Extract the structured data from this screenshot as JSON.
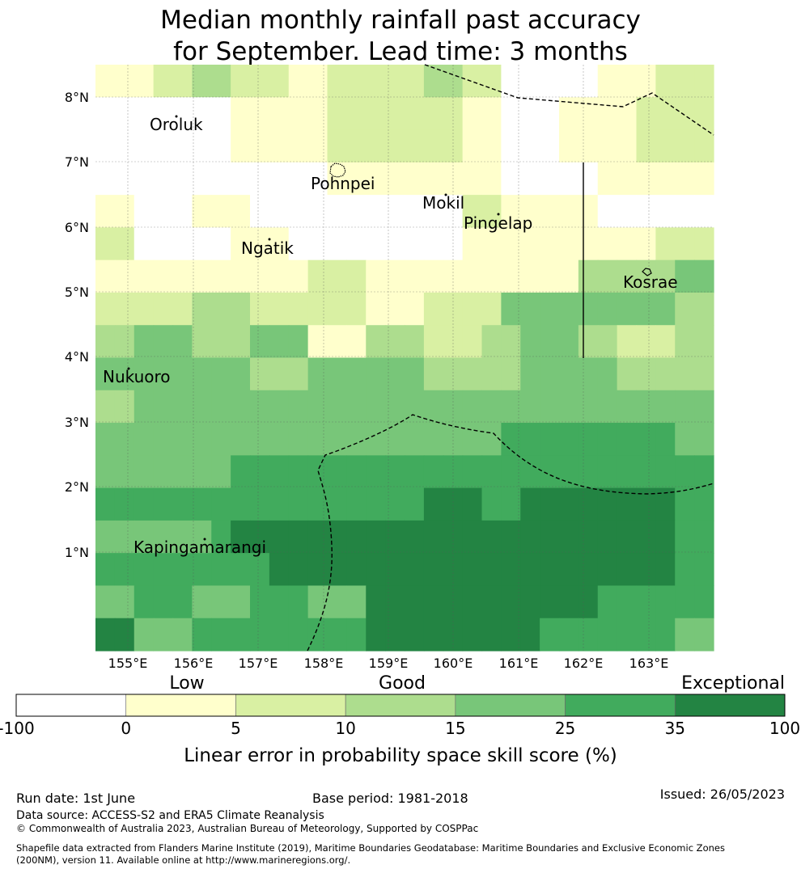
{
  "title": {
    "line1": "Median monthly rainfall past accuracy",
    "line2": "for September. Lead time: 3 months"
  },
  "map": {
    "lon_ticks": [
      "155°E",
      "156°E",
      "157°E",
      "158°E",
      "159°E",
      "160°E",
      "161°E",
      "162°E",
      "163°E"
    ],
    "lat_ticks": [
      "8°N",
      "7°N",
      "6°N",
      "5°N",
      "4°N",
      "3°N",
      "2°N",
      "1°N"
    ],
    "places": [
      {
        "name": "Oroluk"
      },
      {
        "name": "Pohnpei"
      },
      {
        "name": "Mokil"
      },
      {
        "name": "Pingelap"
      },
      {
        "name": "Ngatik"
      },
      {
        "name": "Kosrae"
      },
      {
        "name": "Nukuoro"
      },
      {
        "name": "Kapingamarangi"
      }
    ],
    "grid_classes": [
      [
        1,
        1,
        1,
        2,
        2,
        3,
        3,
        2,
        2,
        2,
        1,
        1,
        2,
        2,
        2,
        2,
        2,
        3,
        3,
        2,
        2,
        0,
        0,
        0,
        0,
        0,
        1,
        1,
        1,
        2,
        2,
        2
      ],
      [
        0,
        0,
        0,
        0,
        0,
        0,
        0,
        1,
        1,
        1,
        1,
        1,
        2,
        2,
        2,
        2,
        2,
        2,
        2,
        1,
        1,
        0,
        0,
        0,
        1,
        1,
        1,
        1,
        2,
        2,
        2,
        2
      ],
      [
        0,
        0,
        0,
        0,
        0,
        0,
        0,
        1,
        1,
        1,
        1,
        1,
        2,
        2,
        2,
        2,
        2,
        2,
        2,
        1,
        1,
        0,
        0,
        0,
        1,
        1,
        1,
        1,
        2,
        2,
        2,
        2
      ],
      [
        0,
        0,
        0,
        0,
        0,
        0,
        0,
        0,
        0,
        0,
        0,
        0,
        1,
        1,
        1,
        1,
        1,
        1,
        1,
        1,
        1,
        0,
        0,
        0,
        0,
        0,
        1,
        1,
        1,
        1,
        1,
        1
      ],
      [
        1,
        1,
        0,
        0,
        0,
        1,
        1,
        1,
        0,
        0,
        0,
        0,
        0,
        0,
        0,
        0,
        0,
        0,
        0,
        2,
        2,
        1,
        1,
        1,
        1,
        1,
        0,
        0,
        0,
        0,
        0,
        0
      ],
      [
        2,
        2,
        0,
        0,
        0,
        0,
        0,
        1,
        1,
        1,
        0,
        0,
        0,
        0,
        0,
        0,
        0,
        0,
        0,
        1,
        1,
        1,
        1,
        1,
        1,
        1,
        1,
        1,
        1,
        2,
        2,
        2
      ],
      [
        1,
        1,
        1,
        1,
        1,
        1,
        1,
        1,
        1,
        1,
        1,
        2,
        2,
        2,
        1,
        1,
        1,
        1,
        1,
        1,
        1,
        1,
        1,
        1,
        1,
        3,
        3,
        3,
        3,
        3,
        4,
        4
      ],
      [
        2,
        2,
        2,
        2,
        2,
        3,
        3,
        3,
        2,
        2,
        2,
        2,
        2,
        2,
        1,
        1,
        1,
        2,
        2,
        2,
        2,
        4,
        4,
        4,
        4,
        4,
        4,
        4,
        4,
        4,
        3,
        3
      ],
      [
        3,
        3,
        4,
        4,
        4,
        3,
        3,
        3,
        4,
        4,
        4,
        1,
        1,
        1,
        3,
        3,
        3,
        2,
        2,
        2,
        3,
        3,
        4,
        4,
        4,
        3,
        3,
        2,
        2,
        2,
        3,
        3
      ],
      [
        4,
        4,
        4,
        4,
        4,
        4,
        4,
        4,
        3,
        3,
        3,
        4,
        4,
        4,
        4,
        4,
        4,
        3,
        3,
        3,
        3,
        3,
        4,
        4,
        4,
        4,
        4,
        3,
        3,
        3,
        3,
        3
      ],
      [
        3,
        3,
        4,
        4,
        4,
        4,
        4,
        4,
        4,
        4,
        4,
        4,
        4,
        4,
        4,
        4,
        4,
        4,
        4,
        4,
        4,
        4,
        4,
        4,
        4,
        4,
        4,
        4,
        4,
        4,
        4,
        4
      ],
      [
        4,
        4,
        4,
        4,
        4,
        4,
        4,
        4,
        4,
        4,
        4,
        4,
        4,
        4,
        4,
        4,
        4,
        4,
        4,
        4,
        4,
        5,
        5,
        5,
        5,
        5,
        5,
        5,
        5,
        5,
        4,
        4
      ],
      [
        4,
        4,
        4,
        4,
        4,
        4,
        4,
        5,
        5,
        5,
        5,
        5,
        5,
        5,
        5,
        5,
        5,
        5,
        5,
        5,
        5,
        5,
        5,
        5,
        5,
        5,
        5,
        5,
        5,
        5,
        5,
        5
      ],
      [
        5,
        5,
        5,
        5,
        5,
        5,
        5,
        5,
        5,
        5,
        5,
        5,
        5,
        5,
        5,
        5,
        5,
        6,
        6,
        6,
        5,
        5,
        6,
        6,
        6,
        6,
        6,
        6,
        6,
        6,
        5,
        5
      ],
      [
        4,
        4,
        4,
        4,
        4,
        4,
        5,
        6,
        6,
        6,
        6,
        6,
        6,
        6,
        6,
        6,
        6,
        6,
        6,
        6,
        6,
        6,
        6,
        6,
        6,
        6,
        6,
        6,
        6,
        6,
        5,
        5
      ],
      [
        5,
        5,
        5,
        5,
        5,
        5,
        5,
        5,
        5,
        6,
        6,
        6,
        6,
        6,
        6,
        6,
        6,
        6,
        6,
        6,
        6,
        6,
        6,
        6,
        6,
        6,
        6,
        6,
        6,
        6,
        5,
        5
      ],
      [
        4,
        4,
        5,
        5,
        5,
        4,
        4,
        4,
        5,
        5,
        5,
        4,
        4,
        4,
        6,
        6,
        6,
        6,
        6,
        6,
        6,
        6,
        6,
        6,
        6,
        6,
        5,
        5,
        5,
        5,
        5,
        5
      ],
      [
        6,
        6,
        4,
        4,
        4,
        5,
        5,
        5,
        5,
        5,
        5,
        5,
        5,
        5,
        6,
        6,
        6,
        6,
        6,
        6,
        6,
        6,
        6,
        5,
        5,
        5,
        5,
        5,
        5,
        5,
        4,
        4
      ]
    ]
  },
  "colorbar": {
    "tick_labels": [
      "-100",
      "0",
      "5",
      "10",
      "15",
      "25",
      "35",
      "100"
    ],
    "colors": [
      "#ffffff",
      "#ffffcc",
      "#d9f0a3",
      "#addd8e",
      "#78c679",
      "#41ab5d",
      "#238443"
    ],
    "categories": [
      "Low",
      "Good",
      "Exceptional"
    ],
    "title": "Linear error in probability space skill score (%)"
  },
  "footer": {
    "run_date": "Run date: 1st June",
    "base_period": "Base period: 1981-2018",
    "issued": "Issued: 26/05/2023",
    "data_source": "Data source: ACCESS-S2 and ERA5 Climate Reanalysis",
    "copyright": "© Commonwealth of Australia 2023, Australian Bureau of Meteorology, Supported by COSPPac",
    "shapefile_line1": "Shapefile data extracted from Flanders Marine Institute (2019), Maritime Boundaries Geodatabase: Maritime Boundaries and Exclusive Economic Zones",
    "shapefile_line2": "(200NM), version 11. Available online at http://www.marineregions.org/."
  }
}
